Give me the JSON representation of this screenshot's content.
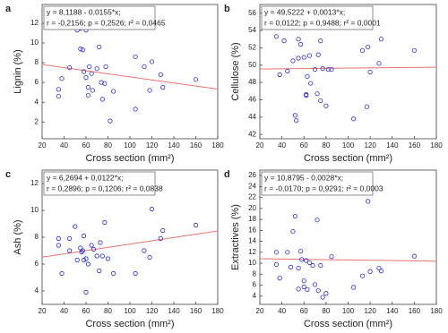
{
  "chart_data": [
    {
      "type": "scatter",
      "letter": "a",
      "ylabel": "Lignin (%)",
      "xlabel": "Cross section (mm²)",
      "equation": "y = 8,1188 - 0,0155*x;",
      "stats": "r = -0,2156; p = 0,2526; r² = 0,0465",
      "trend": {
        "intercept": 8.1188,
        "slope": -0.0155
      },
      "x": [
        35,
        35,
        38,
        45,
        48,
        52,
        55,
        57,
        58,
        55,
        60,
        62,
        62,
        65,
        66,
        70,
        72,
        74,
        75,
        77,
        78,
        82,
        85,
        105,
        105,
        113,
        118,
        120,
        128,
        130,
        160,
        60,
        63
      ],
      "y": [
        5.3,
        4.6,
        6.4,
        7.5,
        11.7,
        11.3,
        9.4,
        9.3,
        7.1,
        11.5,
        6.5,
        5.5,
        4.7,
        6.9,
        5.2,
        7.4,
        9.6,
        6.0,
        4.3,
        5.9,
        7.6,
        2.1,
        5.1,
        8.6,
        3.3,
        7.6,
        5.2,
        8.1,
        6.8,
        5.5,
        6.3,
        11.3,
        7.6
      ],
      "xlim": [
        20,
        180
      ],
      "xticks": [
        20,
        40,
        60,
        80,
        100,
        120,
        140,
        160,
        180
      ],
      "ylim": [
        0.3,
        13.9
      ],
      "yticks": [
        2,
        4,
        6,
        8,
        10,
        12
      ],
      "marker_color": "#2b2bcf",
      "trend_color": "#e8746c"
    },
    {
      "type": "scatter",
      "letter": "b",
      "ylabel": "Cellulose (%)",
      "xlabel": "Cross section (mm²)",
      "equation": "y = 49,5222 + 0,0013*x;",
      "stats": "r = 0,0122; p = 0,9488; r² = 0,0001",
      "trend": {
        "intercept": 49.5222,
        "slope": 0.0013
      },
      "x": [
        35,
        38,
        42,
        45,
        50,
        52,
        53,
        55,
        57,
        60,
        62,
        62,
        63,
        65,
        66,
        70,
        72,
        73,
        75,
        77,
        80,
        82,
        85,
        105,
        113,
        117,
        118,
        120,
        128,
        130,
        160,
        55,
        75
      ],
      "y": [
        53.3,
        48.9,
        52.8,
        49.3,
        50.5,
        44.2,
        43.6,
        50.8,
        52.4,
        50.9,
        46.6,
        46.5,
        48.7,
        51.1,
        47.9,
        49.5,
        46.7,
        51.2,
        45.9,
        49.6,
        45.3,
        49.5,
        49.5,
        43.8,
        51.7,
        45.2,
        52.1,
        49.2,
        50.2,
        53.0,
        51.7,
        53.0,
        52.8
      ],
      "xlim": [
        20,
        180
      ],
      "xticks": [
        20,
        40,
        60,
        80,
        100,
        120,
        140,
        160,
        180
      ],
      "ylim": [
        41.5,
        57
      ],
      "yticks": [
        42,
        44,
        46,
        48,
        50,
        52,
        54,
        56
      ],
      "marker_color": "#2b2bcf",
      "trend_color": "#e8746c"
    },
    {
      "type": "scatter",
      "letter": "c",
      "ylabel": "Ash (%)",
      "xlabel": "Cross section (mm²)",
      "equation": "y = 6,2694 + 0,0122*x;",
      "stats": "r = 0,2896; p = 0,1206; r² = 0,0838",
      "trend": {
        "intercept": 6.2694,
        "slope": 0.0122
      },
      "x": [
        35,
        35,
        38,
        45,
        45,
        50,
        52,
        55,
        56,
        57,
        58,
        58,
        60,
        60,
        62,
        65,
        67,
        70,
        72,
        73,
        75,
        77,
        80,
        85,
        105,
        113,
        118,
        120,
        128,
        130,
        160
      ],
      "y": [
        7.4,
        7.9,
        5.3,
        7.9,
        7.0,
        8.8,
        6.3,
        7.2,
        6.9,
        7.0,
        8.1,
        6.3,
        6.4,
        3.9,
        6.0,
        7.4,
        7.1,
        6.6,
        5.5,
        7.6,
        6.6,
        9.1,
        6.4,
        5.3,
        5.3,
        7.0,
        6.5,
        10.1,
        7.9,
        8.5,
        8.9
      ],
      "xlim": [
        20,
        180
      ],
      "xticks": [
        20,
        40,
        60,
        80,
        100,
        120,
        140,
        160,
        180
      ],
      "ylim": [
        3,
        13
      ],
      "yticks": [
        4,
        6,
        8,
        10,
        12
      ],
      "marker_color": "#2b2bcf",
      "trend_color": "#e8746c"
    },
    {
      "type": "scatter",
      "letter": "d",
      "ylabel": "Extractives (%)",
      "xlabel": "Cross section (mm²)",
      "equation": "y = 10,8795 - 0,0028*x;",
      "stats": "r = -0,0170; p = 0,9291; r² = 0,0003",
      "trend": {
        "intercept": 10.8795,
        "slope": -0.0028
      },
      "x": [
        35,
        35,
        38,
        45,
        48,
        50,
        52,
        55,
        55,
        57,
        58,
        60,
        60,
        62,
        63,
        65,
        68,
        70,
        72,
        73,
        75,
        77,
        80,
        85,
        105,
        113,
        118,
        120,
        128,
        130,
        160
      ],
      "y": [
        12,
        9.8,
        7.3,
        12,
        9.3,
        15.8,
        18.6,
        9.1,
        5.3,
        12.2,
        10.7,
        5.7,
        6.8,
        10.5,
        5.2,
        10.1,
        9.6,
        6.1,
        17.9,
        5.0,
        9.6,
        3.8,
        4.5,
        11.2,
        5.6,
        7.7,
        21.3,
        8.5,
        9.1,
        8.6,
        11.3
      ],
      "xlim": [
        20,
        180
      ],
      "xticks": [
        20,
        40,
        60,
        80,
        100,
        120,
        140,
        160,
        180
      ],
      "ylim": [
        2.5,
        27
      ],
      "yticks": [
        4,
        6,
        8,
        10,
        12,
        14,
        16,
        18,
        20,
        22,
        24,
        26
      ],
      "marker_color": "#2b2bcf",
      "trend_color": "#e8746c"
    }
  ]
}
